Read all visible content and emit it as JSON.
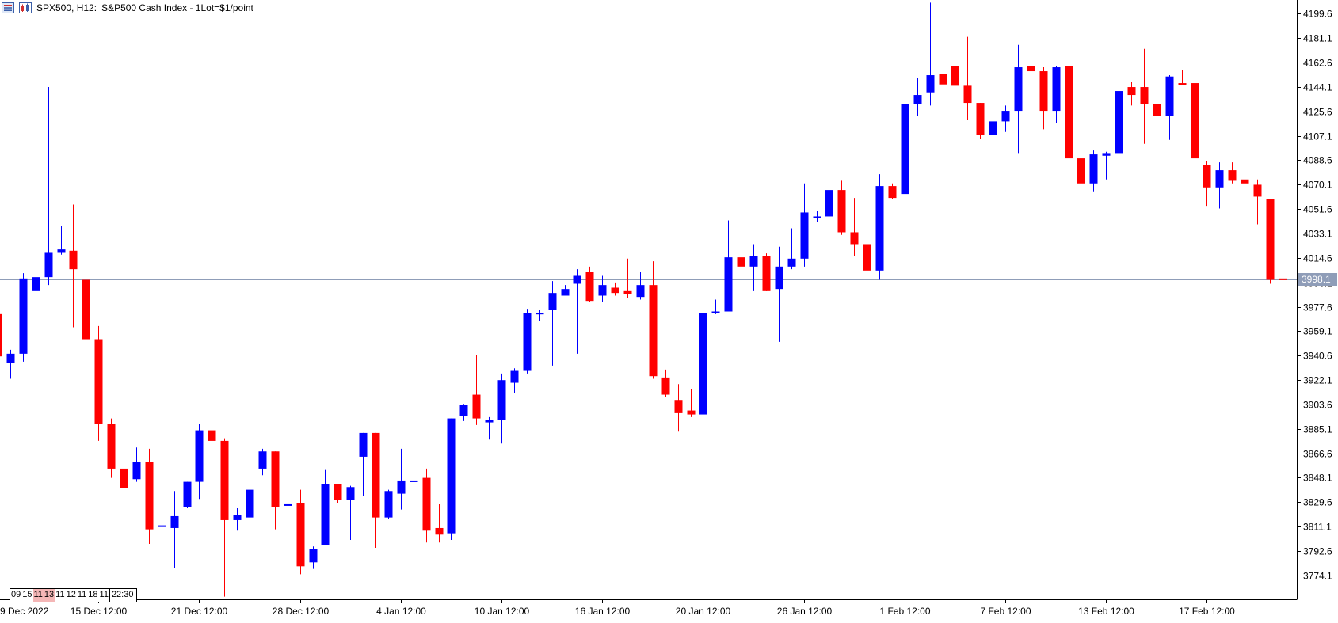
{
  "header": {
    "symbol": "SPX500, H12:",
    "description": "S&P500 Cash Index - 1Lot=$1/point"
  },
  "colors": {
    "bull": "#0000ff",
    "bear": "#ff0000",
    "price_line": "#8f9db8",
    "price_label_bg": "#8f9db8",
    "axis": "#000000",
    "background": "#ffffff"
  },
  "bar_time_box": {
    "segments": [
      "09",
      "15",
      "11",
      "13",
      "11",
      "12",
      "11",
      "18",
      "11"
    ],
    "highlighted": [
      2,
      3
    ],
    "tail": "22:30"
  },
  "chart_data": {
    "type": "candlestick",
    "title": "SPX500, H12:  S&P500 Cash Index - 1Lot=$1/point",
    "ylim": [
      3756,
      4210
    ],
    "last_price": 3998.1,
    "last_price_label": "3998.1",
    "y_ticks": [
      "3774.1",
      "3792.6",
      "3811.1",
      "3829.6",
      "3848.1",
      "3866.6",
      "3885.1",
      "3903.6",
      "3922.1",
      "3940.6",
      "3959.1",
      "3977.6",
      "3996.1",
      "4014.6",
      "4033.1",
      "4051.6",
      "4070.1",
      "4088.6",
      "4107.1",
      "4125.6",
      "4144.1",
      "4162.6",
      "4181.1",
      "4199.6"
    ],
    "x_ticks": [
      {
        "label": "9 Dec 2022",
        "index": 0
      },
      {
        "label": "15 Dec 12:00",
        "index": 8
      },
      {
        "label": "21 Dec 12:00",
        "index": 16
      },
      {
        "label": "28 Dec 12:00",
        "index": 24
      },
      {
        "label": "4 Jan 12:00",
        "index": 32
      },
      {
        "label": "10 Jan 12:00",
        "index": 40
      },
      {
        "label": "16 Jan 12:00",
        "index": 48
      },
      {
        "label": "20 Jan 12:00",
        "index": 56
      },
      {
        "label": "26 Jan 12:00",
        "index": 64
      },
      {
        "label": "1 Feb 12:00",
        "index": 72
      },
      {
        "label": "7 Feb 12:00",
        "index": 80
      },
      {
        "label": "13 Feb 12:00",
        "index": 88
      },
      {
        "label": "17 Feb 12:00",
        "index": 96
      }
    ],
    "candles": [
      [
        3972,
        3980,
        3930,
        3940
      ],
      [
        3935,
        3945,
        3923,
        3942
      ],
      [
        3942,
        4003,
        3936,
        3999
      ],
      [
        3990,
        4010,
        3987,
        4000
      ],
      [
        4000,
        4144,
        3994,
        4019
      ],
      [
        4019,
        4039,
        4017,
        4021
      ],
      [
        4020,
        4055,
        3962,
        4006
      ],
      [
        3998,
        4006,
        3948,
        3953
      ],
      [
        3953,
        3963,
        3876,
        3889
      ],
      [
        3889,
        3893,
        3848,
        3855
      ],
      [
        3855,
        3880,
        3820,
        3840
      ],
      [
        3847,
        3871,
        3845,
        3860
      ],
      [
        3860,
        3870,
        3798,
        3809
      ],
      [
        3811,
        3824,
        3776,
        3812
      ],
      [
        3810,
        3838,
        3780,
        3819
      ],
      [
        3826,
        3845,
        3825,
        3845
      ],
      [
        3845,
        3889,
        3832,
        3884
      ],
      [
        3884,
        3888,
        3874,
        3876
      ],
      [
        3876,
        3878,
        3758,
        3816
      ],
      [
        3816,
        3825,
        3808,
        3820
      ],
      [
        3818,
        3844,
        3796,
        3839
      ],
      [
        3855,
        3870,
        3850,
        3868
      ],
      [
        3868,
        3868,
        3809,
        3826
      ],
      [
        3828,
        3835,
        3822,
        3828
      ],
      [
        3829,
        3839,
        3775,
        3781
      ],
      [
        3784,
        3796,
        3779,
        3794
      ],
      [
        3797,
        3854,
        3797,
        3843
      ],
      [
        3843,
        3843,
        3829,
        3831
      ],
      [
        3831,
        3842,
        3801,
        3841
      ],
      [
        3864,
        3882,
        3834,
        3882
      ],
      [
        3882,
        3882,
        3795,
        3818
      ],
      [
        3818,
        3839,
        3817,
        3838
      ],
      [
        3836,
        3870,
        3824,
        3846
      ],
      [
        3846,
        3846,
        3826,
        3846
      ],
      [
        3848,
        3855,
        3799,
        3808
      ],
      [
        3810,
        3828,
        3799,
        3805
      ],
      [
        3806,
        3893,
        3801,
        3893
      ],
      [
        3895,
        3904,
        3891,
        3903
      ],
      [
        3911,
        3941,
        3888,
        3893
      ],
      [
        3890,
        3894,
        3877,
        3892
      ],
      [
        3892,
        3927,
        3874,
        3922
      ],
      [
        3920,
        3931,
        3912,
        3929
      ],
      [
        3929,
        3976,
        3927,
        3973
      ],
      [
        3973,
        3975,
        3967,
        3973
      ],
      [
        3975,
        3997,
        3933,
        3988
      ],
      [
        3986,
        3994,
        3986,
        3991
      ],
      [
        3995,
        4006,
        3942,
        4001
      ],
      [
        4004,
        4008,
        3981,
        3982
      ],
      [
        3986,
        4001,
        3981,
        3994
      ],
      [
        3992,
        3996,
        3986,
        3988
      ],
      [
        3990,
        4014,
        3984,
        3987
      ],
      [
        3985,
        4004,
        3983,
        3994
      ],
      [
        3994,
        4012,
        3923,
        3925
      ],
      [
        3924,
        3930,
        3909,
        3911
      ],
      [
        3907,
        3919,
        3883,
        3897
      ],
      [
        3899,
        3915,
        3894,
        3896
      ],
      [
        3896,
        3975,
        3893,
        3973
      ],
      [
        3973,
        3983,
        3972,
        3974
      ],
      [
        3974,
        4043,
        3974,
        4015
      ],
      [
        4015,
        4019,
        4007,
        4008
      ],
      [
        4008,
        4025,
        3990,
        4016
      ],
      [
        4016,
        4018,
        3990,
        3990
      ],
      [
        3991,
        4023,
        3951,
        4008
      ],
      [
        4008,
        4037,
        4006,
        4014
      ],
      [
        4014,
        4071,
        4008,
        4049
      ],
      [
        4046,
        4050,
        4042,
        4046
      ],
      [
        4046,
        4097,
        4044,
        4066
      ],
      [
        4066,
        4073,
        4032,
        4034
      ],
      [
        4034,
        4060,
        4016,
        4025
      ],
      [
        4025,
        4025,
        4002,
        4005
      ],
      [
        4005,
        4078,
        3998,
        4069
      ],
      [
        4069,
        4071,
        4059,
        4060
      ],
      [
        4063,
        4146,
        4041,
        4131
      ],
      [
        4131,
        4151,
        4122,
        4138
      ],
      [
        4140,
        4208,
        4130,
        4153
      ],
      [
        4154,
        4159,
        4140,
        4146
      ],
      [
        4160,
        4162,
        4138,
        4145
      ],
      [
        4145,
        4182,
        4119,
        4132
      ],
      [
        4132,
        4132,
        4105,
        4108
      ],
      [
        4108,
        4122,
        4102,
        4118
      ],
      [
        4118,
        4130,
        4110,
        4126
      ],
      [
        4126,
        4176,
        4094,
        4159
      ],
      [
        4160,
        4166,
        4144,
        4156
      ],
      [
        4156,
        4159,
        4112,
        4126
      ],
      [
        4126,
        4160,
        4117,
        4159
      ],
      [
        4160,
        4162,
        4077,
        4090
      ],
      [
        4090,
        4090,
        4072,
        4071
      ],
      [
        4071,
        4096,
        4065,
        4093
      ],
      [
        4092,
        4095,
        4074,
        4094
      ],
      [
        4094,
        4142,
        4091,
        4141
      ],
      [
        4144,
        4148,
        4130,
        4138
      ],
      [
        4144,
        4173,
        4101,
        4131
      ],
      [
        4131,
        4137,
        4117,
        4122
      ],
      [
        4122,
        4153,
        4104,
        4152
      ],
      [
        4147,
        4157,
        4146,
        4146
      ],
      [
        4147,
        4152,
        4090,
        4090
      ],
      [
        4085,
        4088,
        4054,
        4068
      ],
      [
        4068,
        4087,
        4052,
        4081
      ],
      [
        4081,
        4087,
        4071,
        4073
      ],
      [
        4074,
        4082,
        4070,
        4071
      ],
      [
        4070,
        4074,
        4040,
        4061
      ],
      [
        4059,
        4059,
        3995,
        3998
      ],
      [
        3999,
        4008,
        3991,
        3998
      ]
    ]
  }
}
